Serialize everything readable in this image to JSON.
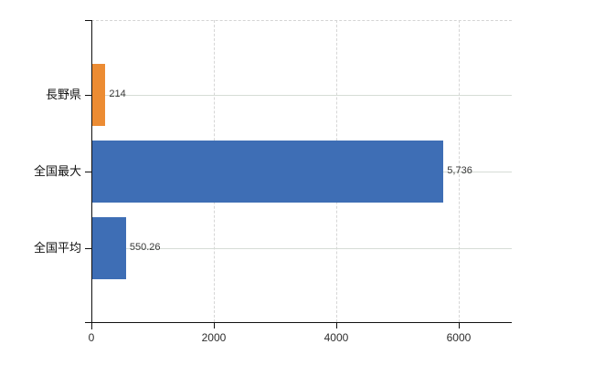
{
  "chart_data": {
    "type": "bar",
    "orientation": "horizontal",
    "title": "",
    "xlabel": "",
    "ylabel": "",
    "categories": [
      "長野県",
      "全国最大",
      "全国平均"
    ],
    "values": [
      214,
      5736,
      550.26
    ],
    "value_labels": [
      "214",
      "5,736",
      "550.26"
    ],
    "bar_colors": [
      "#ec8c33",
      "#3e6eb5",
      "#3e6eb5"
    ],
    "xlim": [
      0,
      6866
    ],
    "xticks": [
      0,
      2000,
      4000,
      6000
    ],
    "xtick_labels": [
      "0",
      "2000",
      "4000",
      "6000"
    ],
    "grid": true,
    "legend": "none"
  },
  "colors": {
    "background": "#ffffff",
    "axis": "#111111",
    "grid_horizontal": "#d6dcd6",
    "grid_vertical": "#d6d6d6",
    "category_text": "#111111",
    "value_text": "#3a3a3a",
    "tick_text": "#2e2e2e",
    "bar_orange": "#ec8c33",
    "bar_blue": "#3e6eb5"
  }
}
